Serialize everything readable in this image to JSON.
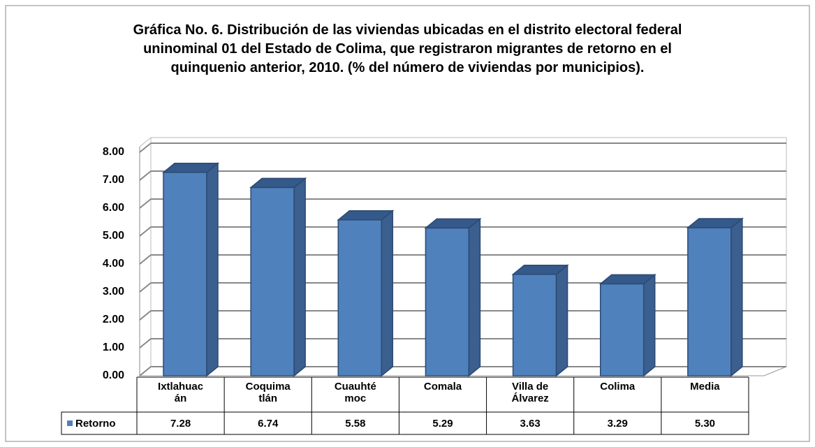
{
  "chart_data": {
    "type": "bar3d",
    "title": "Gráfica No. 6. Distribución de las viviendas ubicadas en el distrito electoral federal uninominal 01 del Estado de Colima, que registraron migrantes de retorno en el quinquenio anterior, 2010. (% del número de viviendas por municipios).",
    "categories": [
      "Ixtlahuacán",
      "Coquimatlán",
      "Cuauhtémoc",
      "Comala",
      "Villa de Álvarez",
      "Colima",
      "Media"
    ],
    "series": [
      {
        "name": "Retorno",
        "color": "#4f81bd",
        "values": [
          7.28,
          6.74,
          5.58,
          5.29,
          3.63,
          3.29,
          5.3
        ],
        "value_labels": [
          "7.28",
          "6.74",
          "5.58",
          "5.29",
          "3.63",
          "3.29",
          "5.30"
        ]
      }
    ],
    "ylim": [
      0,
      8
    ],
    "yticks": [
      {
        "value": 0,
        "label": "0.00"
      },
      {
        "value": 1,
        "label": "1.00"
      },
      {
        "value": 2,
        "label": "2.00"
      },
      {
        "value": 3,
        "label": "3.00"
      },
      {
        "value": 4,
        "label": "4.00"
      },
      {
        "value": 5,
        "label": "5.00"
      },
      {
        "value": 6,
        "label": "6.00"
      },
      {
        "value": 7,
        "label": "7.00"
      },
      {
        "value": 8,
        "label": "8.00"
      }
    ],
    "grid": true,
    "legend": "table"
  }
}
